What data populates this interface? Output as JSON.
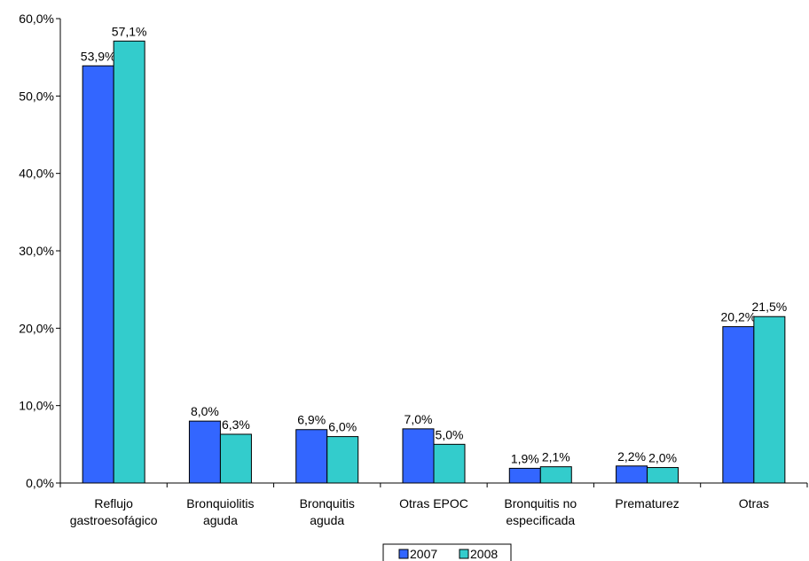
{
  "chart_data": {
    "type": "bar",
    "categories": [
      [
        "Reflujo",
        "gastroesofágico"
      ],
      [
        "Bronquiolitis",
        "aguda"
      ],
      [
        "Bronquitis",
        "aguda"
      ],
      [
        "Otras EPOC"
      ],
      [
        "Bronquitis no",
        "especificada"
      ],
      [
        "Prematurez"
      ],
      [
        "Otras"
      ]
    ],
    "series": [
      {
        "name": "2007",
        "color": "#3366FF",
        "values": [
          53.9,
          8.0,
          6.9,
          7.0,
          1.9,
          2.2,
          20.2
        ],
        "labels": [
          "53,9%",
          "8,0%",
          "6,9%",
          "7,0%",
          "1,9%",
          "2,2%",
          "20,2%"
        ]
      },
      {
        "name": "2008",
        "color": "#33CCCC",
        "values": [
          57.1,
          6.3,
          6.0,
          5.0,
          2.1,
          2.0,
          21.5
        ],
        "labels": [
          "57,1%",
          "6,3%",
          "6,0%",
          "5,0%",
          "2,1%",
          "2,0%",
          "21,5%"
        ]
      }
    ],
    "y_ticks": [
      {
        "value": 0,
        "label": "0,0%"
      },
      {
        "value": 10,
        "label": "10,0%"
      },
      {
        "value": 20,
        "label": "20,0%"
      },
      {
        "value": 30,
        "label": "30,0%"
      },
      {
        "value": 40,
        "label": "40,0%"
      },
      {
        "value": 50,
        "label": "50,0%"
      },
      {
        "value": 60,
        "label": "60,0%"
      }
    ],
    "ylim": [
      0,
      60
    ],
    "title": "",
    "xlabel": "",
    "ylabel": "",
    "grid": false,
    "legend_position": "bottom"
  }
}
